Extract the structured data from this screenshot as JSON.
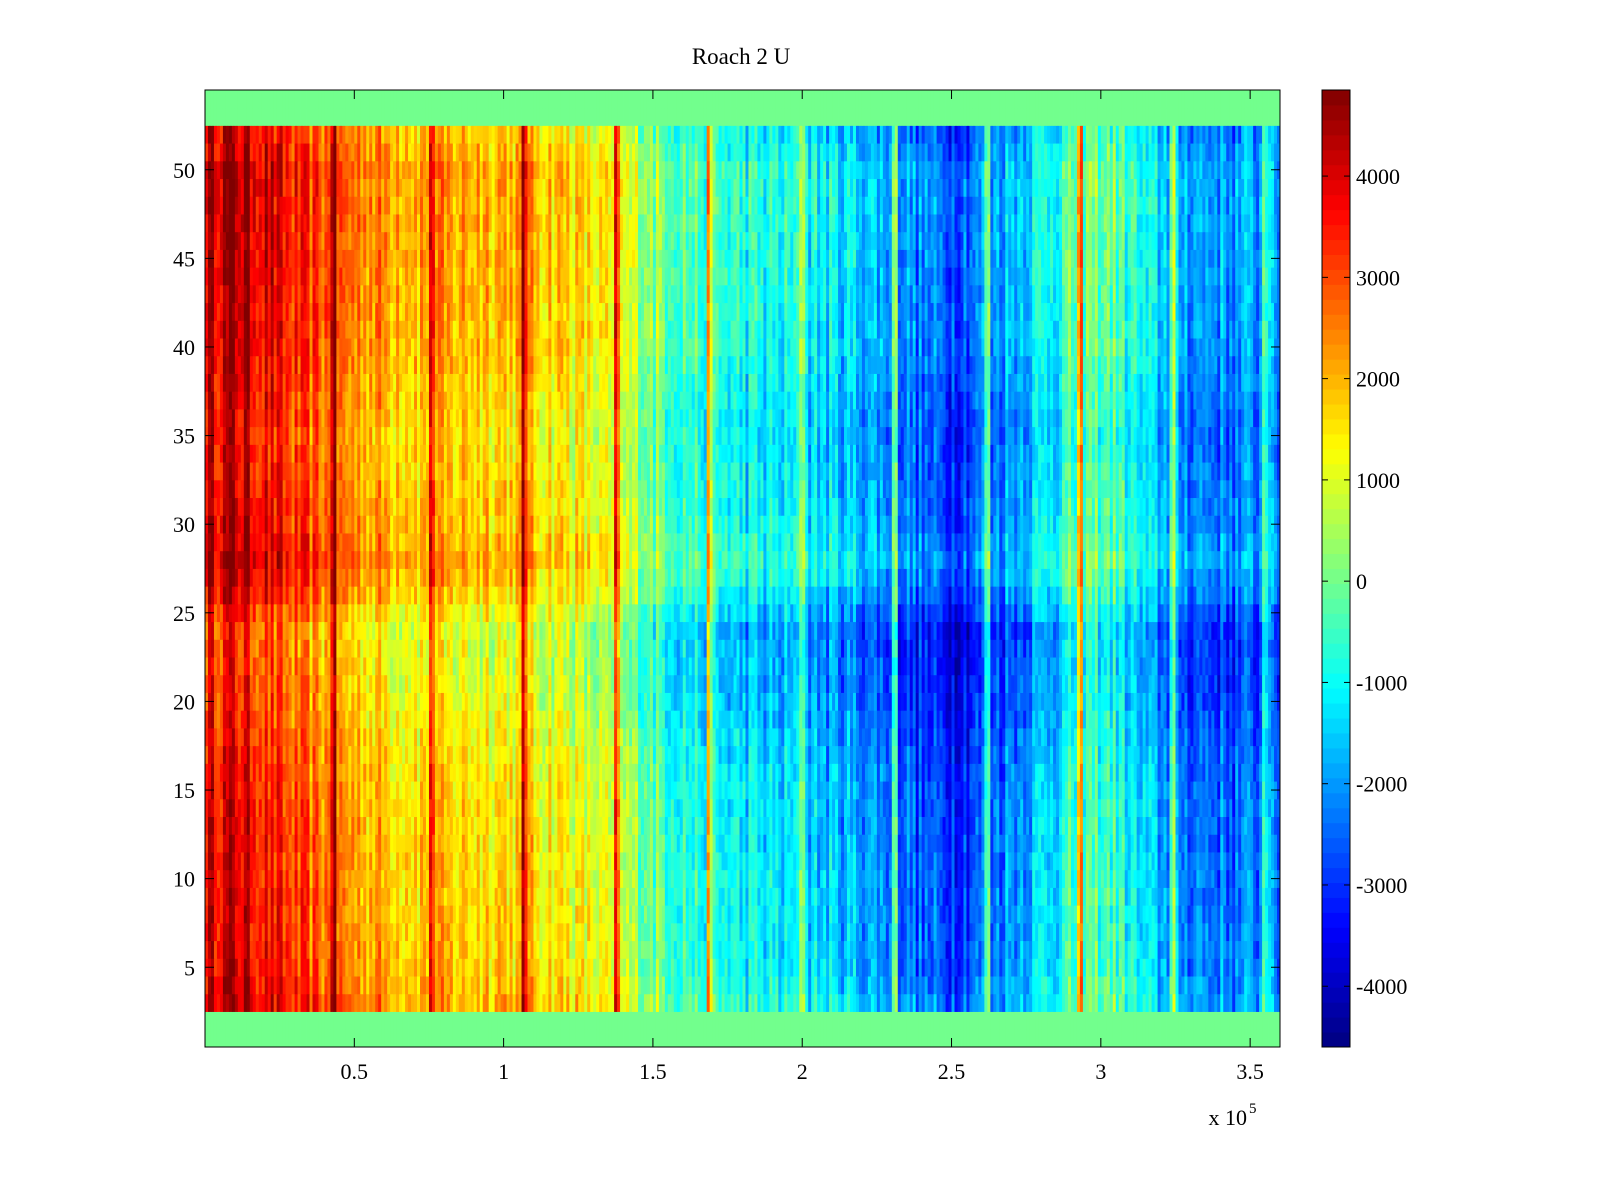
{
  "chart_data": {
    "type": "heatmap",
    "title": "Roach 2 U",
    "xlabel": "",
    "ylabel": "",
    "x_exponent_label": "x 10",
    "x_exponent": "5",
    "xlim": [
      0,
      3.6
    ],
    "ylim": [
      0.5,
      54.5
    ],
    "x_ticks": [
      0.5,
      1,
      1.5,
      2,
      2.5,
      3,
      3.5
    ],
    "x_tick_labels": [
      "0.5",
      "1",
      "1.5",
      "2",
      "2.5",
      "3",
      "3.5"
    ],
    "y_ticks": [
      5,
      10,
      15,
      20,
      25,
      30,
      35,
      40,
      45,
      50
    ],
    "y_tick_labels": [
      "5",
      "10",
      "15",
      "20",
      "25",
      "30",
      "35",
      "40",
      "45",
      "50"
    ],
    "colormap": "jet",
    "clim": [
      -4600,
      4850
    ],
    "colorbar_ticks": [
      4000,
      3000,
      2000,
      1000,
      0,
      -1000,
      -2000,
      -3000,
      -4000
    ],
    "colorbar_tick_labels": [
      "4000",
      "3000",
      "2000",
      "1000",
      "0",
      "-1000",
      "-2000",
      "-3000",
      "-4000"
    ],
    "rows": 54,
    "columns": 360,
    "blank_rows": [
      1,
      2,
      53,
      54
    ],
    "blank_row_value": 0,
    "column_profile": {
      "x": [
        0,
        0.1,
        0.2,
        0.3,
        0.45,
        0.6,
        0.8,
        1.0,
        1.2,
        1.4,
        1.6,
        1.8,
        2.0,
        2.2,
        2.4,
        2.5,
        2.6,
        2.7,
        2.8,
        2.95,
        3.05,
        3.15,
        3.3,
        3.45,
        3.6
      ],
      "value": [
        3700,
        4000,
        3500,
        2800,
        2300,
        1900,
        1600,
        1700,
        1300,
        500,
        -700,
        -1300,
        -1500,
        -1900,
        -2700,
        -3000,
        -2600,
        -2100,
        -1500,
        -400,
        -600,
        -1700,
        -2300,
        -2500,
        -2300
      ]
    },
    "row_offset_profile": {
      "row": [
        3,
        5,
        10,
        15,
        18,
        20,
        24,
        26,
        28,
        30,
        35,
        40,
        45,
        50,
        52
      ],
      "offset": [
        500,
        200,
        100,
        0,
        -200,
        -400,
        -600,
        100,
        600,
        300,
        0,
        400,
        500,
        600,
        200
      ]
    },
    "spike_columns_x": [
      0.43,
      0.76,
      1.07,
      1.38,
      1.69,
      2.0,
      2.31,
      2.62,
      2.93,
      3.24,
      3.55
    ],
    "random_seed": 12345
  }
}
